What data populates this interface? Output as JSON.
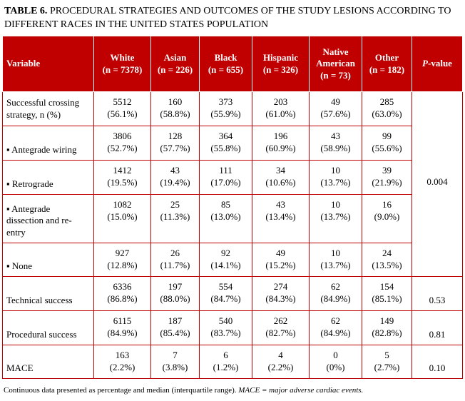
{
  "title": {
    "label": "TABLE 6.",
    "text": "PROCEDURAL STRATEGIES AND OUTCOMES OF THE STUDY LESIONS ACCORDING TO DIFFERENT RACES IN THE UNITED STATES POPULATION"
  },
  "colors": {
    "header_bg": "#c00000",
    "border": "#c00000"
  },
  "headers": {
    "variable": "Variable",
    "white": [
      "White",
      "(n = 7378)"
    ],
    "asian": [
      "Asian",
      "(n = 226)"
    ],
    "black": [
      "Black",
      "(n = 655)"
    ],
    "hispanic": [
      "Hispanic",
      "(n = 326)"
    ],
    "native": [
      "Native",
      "American",
      "(n = 73)"
    ],
    "other": [
      "Other",
      "(n = 182)"
    ],
    "pvalue": [
      "P",
      "-value"
    ]
  },
  "rows": [
    {
      "label": [
        "Successful crossing",
        "strategy, n (%)"
      ],
      "cells": [
        [
          "5512",
          "(56.1%)"
        ],
        [
          "160",
          "(58.8%)"
        ],
        [
          "373",
          "(55.9%)"
        ],
        [
          "203",
          "(61.0%)"
        ],
        [
          "49",
          "(57.6%)"
        ],
        [
          "285",
          "(63.0%)"
        ]
      ]
    },
    {
      "label": [
        "▪ Antegrade wiring"
      ],
      "cells": [
        [
          "3806",
          "(52.7%)"
        ],
        [
          "128",
          "(57.7%)"
        ],
        [
          "364",
          "(55.8%)"
        ],
        [
          "196",
          "(60.9%)"
        ],
        [
          "43",
          "(58.9%)"
        ],
        [
          "99",
          "(55.6%)"
        ]
      ]
    },
    {
      "label": [
        "▪ Retrograde"
      ],
      "cells": [
        [
          "1412",
          "(19.5%)"
        ],
        [
          "43",
          "(19.4%)"
        ],
        [
          "111",
          "(17.0%)"
        ],
        [
          "34",
          "(10.6%)"
        ],
        [
          "10",
          "(13.7%)"
        ],
        [
          "39",
          "(21.9%)"
        ]
      ]
    },
    {
      "label": [
        "▪ Antegrade",
        "dissection and re-",
        "entry"
      ],
      "cells": [
        [
          "1082",
          "(15.0%)"
        ],
        [
          "25",
          "(11.3%)"
        ],
        [
          "85",
          "(13.0%)"
        ],
        [
          "43",
          "(13.4%)"
        ],
        [
          "10",
          "(13.7%)"
        ],
        [
          "16",
          "(9.0%)"
        ]
      ]
    },
    {
      "label": [
        "▪ None"
      ],
      "cells": [
        [
          "927",
          "(12.8%)"
        ],
        [
          "26",
          "(11.7%)"
        ],
        [
          "92",
          "(14.1%)"
        ],
        [
          "49",
          "(15.2%)"
        ],
        [
          "10",
          "(13.7%)"
        ],
        [
          "24",
          "(13.5%)"
        ]
      ]
    },
    {
      "label": [
        "Technical success"
      ],
      "cells": [
        [
          "6336",
          "(86.8%)"
        ],
        [
          "197",
          "(88.0%)"
        ],
        [
          "554",
          "(84.7%)"
        ],
        [
          "274",
          "(84.3%)"
        ],
        [
          "62",
          "(84.9%)"
        ],
        [
          "154",
          "(85.1%)"
        ]
      ],
      "pvalue": "0.53"
    },
    {
      "label": [
        "Procedural success"
      ],
      "cells": [
        [
          "6115",
          "(84.9%)"
        ],
        [
          "187",
          "(85.4%)"
        ],
        [
          "540",
          "(83.7%)"
        ],
        [
          "262",
          "(82.7%)"
        ],
        [
          "62",
          "(84.9%)"
        ],
        [
          "149",
          "(82.8%)"
        ]
      ],
      "pvalue": "0.81"
    },
    {
      "label": [
        "MACE"
      ],
      "cells": [
        [
          "163",
          "(2.2%)"
        ],
        [
          "7",
          "(3.8%)"
        ],
        [
          "6",
          "(1.2%)"
        ],
        [
          "4",
          "(2.2%)"
        ],
        [
          "0",
          "(0%)"
        ],
        [
          "5",
          "(2.7%)"
        ]
      ],
      "pvalue": "0.10"
    }
  ],
  "strategy_pvalue": "0.004",
  "footer": {
    "plain": "Continuous data presented as percentage and median (interquartile range).",
    "italic": "MACE = major adverse cardiac events."
  }
}
